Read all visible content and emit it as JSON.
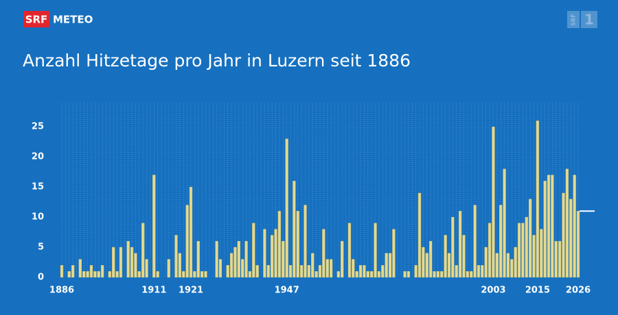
{
  "header": {
    "brand": "SRF",
    "product": "METEO",
    "channel": "SRF",
    "channel_number": "1"
  },
  "chart_data": {
    "type": "bar",
    "title": "Anzahl Hitzetage pro Jahr in Luzern seit 1886",
    "color": "#e6d98c",
    "grid": true,
    "categories": [
      "1886",
      null,
      null,
      null,
      null,
      null,
      null,
      null,
      null,
      null,
      null,
      null,
      null,
      null,
      null,
      null,
      null,
      null,
      null,
      null,
      null,
      null,
      null,
      null,
      null,
      "1911",
      null,
      null,
      null,
      null,
      null,
      null,
      null,
      null,
      null,
      "1921",
      null,
      null,
      null,
      null,
      null,
      null,
      null,
      null,
      null,
      null,
      null,
      null,
      null,
      null,
      null,
      null,
      null,
      null,
      null,
      null,
      null,
      null,
      null,
      null,
      null,
      "1947",
      null,
      null,
      null,
      null,
      null,
      null,
      null,
      null,
      null,
      null,
      null,
      null,
      null,
      null,
      null,
      null,
      null,
      null,
      null,
      null,
      null,
      null,
      null,
      null,
      null,
      null,
      null,
      null,
      null,
      null,
      null,
      null,
      null,
      null,
      null,
      null,
      null,
      null,
      null,
      null,
      null,
      null,
      null,
      null,
      null,
      null,
      null,
      null,
      null,
      null,
      null,
      null,
      null,
      null,
      null,
      "2003",
      null,
      null,
      null,
      null,
      null,
      null,
      null,
      null,
      null,
      null,
      null,
      "2015",
      null,
      null,
      null,
      null,
      null,
      null,
      null,
      null,
      null,
      null,
      "2026"
    ],
    "values": [
      2,
      0,
      1,
      2,
      0,
      3,
      1,
      1,
      2,
      1,
      1,
      2,
      0,
      1,
      5,
      1,
      5,
      0,
      6,
      5,
      4,
      1,
      9,
      3,
      0,
      17,
      1,
      0,
      0,
      3,
      0,
      7,
      4,
      1,
      12,
      15,
      1,
      6,
      1,
      1,
      0,
      0,
      6,
      3,
      0,
      2,
      4,
      5,
      6,
      3,
      6,
      1,
      9,
      2,
      0,
      8,
      2,
      7,
      8,
      11,
      6,
      23,
      2,
      16,
      11,
      2,
      12,
      2,
      4,
      1,
      2,
      8,
      3,
      3,
      0,
      1,
      6,
      0,
      9,
      3,
      1,
      2,
      2,
      1,
      1,
      9,
      1,
      2,
      4,
      4,
      8,
      0,
      0,
      1,
      1,
      0,
      2,
      14,
      5,
      4,
      6,
      1,
      1,
      1,
      7,
      4,
      10,
      2,
      11,
      7,
      1,
      1,
      12,
      2,
      2,
      5,
      9,
      25,
      4,
      12,
      18,
      4,
      3,
      5,
      9,
      9,
      10,
      13,
      7,
      26,
      8,
      16,
      17,
      17,
      6,
      6,
      14,
      18,
      13,
      17,
      11
    ],
    "ylim": [
      0,
      29
    ],
    "yticks": [
      0,
      5,
      10,
      15,
      20,
      25
    ]
  }
}
